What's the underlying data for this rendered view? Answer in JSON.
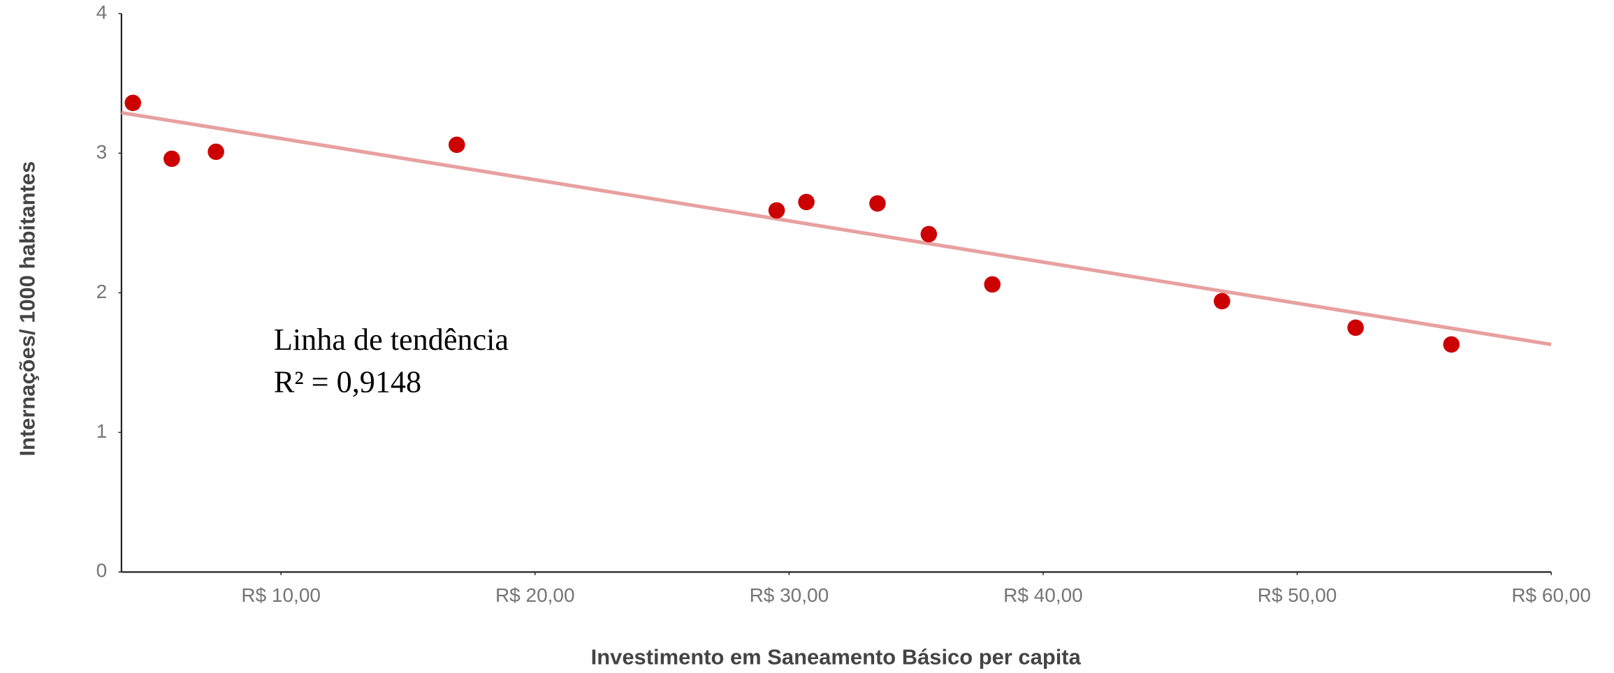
{
  "chart_data": {
    "type": "scatter",
    "x_label": "Investimento em Saneamento Básico per capita",
    "y_label": "Internações/ 1000 habitantes",
    "annotations": [
      "Linha de tendência",
      "R² = 0,9148"
    ],
    "color": "#cc0000",
    "x": [
      4.17,
      5.7,
      7.44,
      16.92,
      29.51,
      30.68,
      33.48,
      35.5,
      38.0,
      47.04,
      52.3,
      56.07
    ],
    "values": [
      3.36,
      2.96,
      3.01,
      3.06,
      2.59,
      2.65,
      2.64,
      2.42,
      2.06,
      1.94,
      1.75,
      1.63
    ],
    "trendline": {
      "color": "#e8a0a0",
      "x": [
        3.72,
        60
      ],
      "values": [
        3.29,
        1.63
      ]
    },
    "xlim": [
      3.72,
      60
    ],
    "ylim": [
      0,
      4
    ],
    "xticks": [
      {
        "value": 10,
        "label": "R$ 10,00"
      },
      {
        "value": 20,
        "label": "R$ 20,00"
      },
      {
        "value": 30,
        "label": "R$ 30,00"
      },
      {
        "value": 40,
        "label": "R$ 40,00"
      },
      {
        "value": 50,
        "label": "R$ 50,00"
      },
      {
        "value": 60,
        "label": "R$ 60,00"
      }
    ],
    "yticks": [
      0,
      1,
      2,
      3,
      4
    ]
  }
}
